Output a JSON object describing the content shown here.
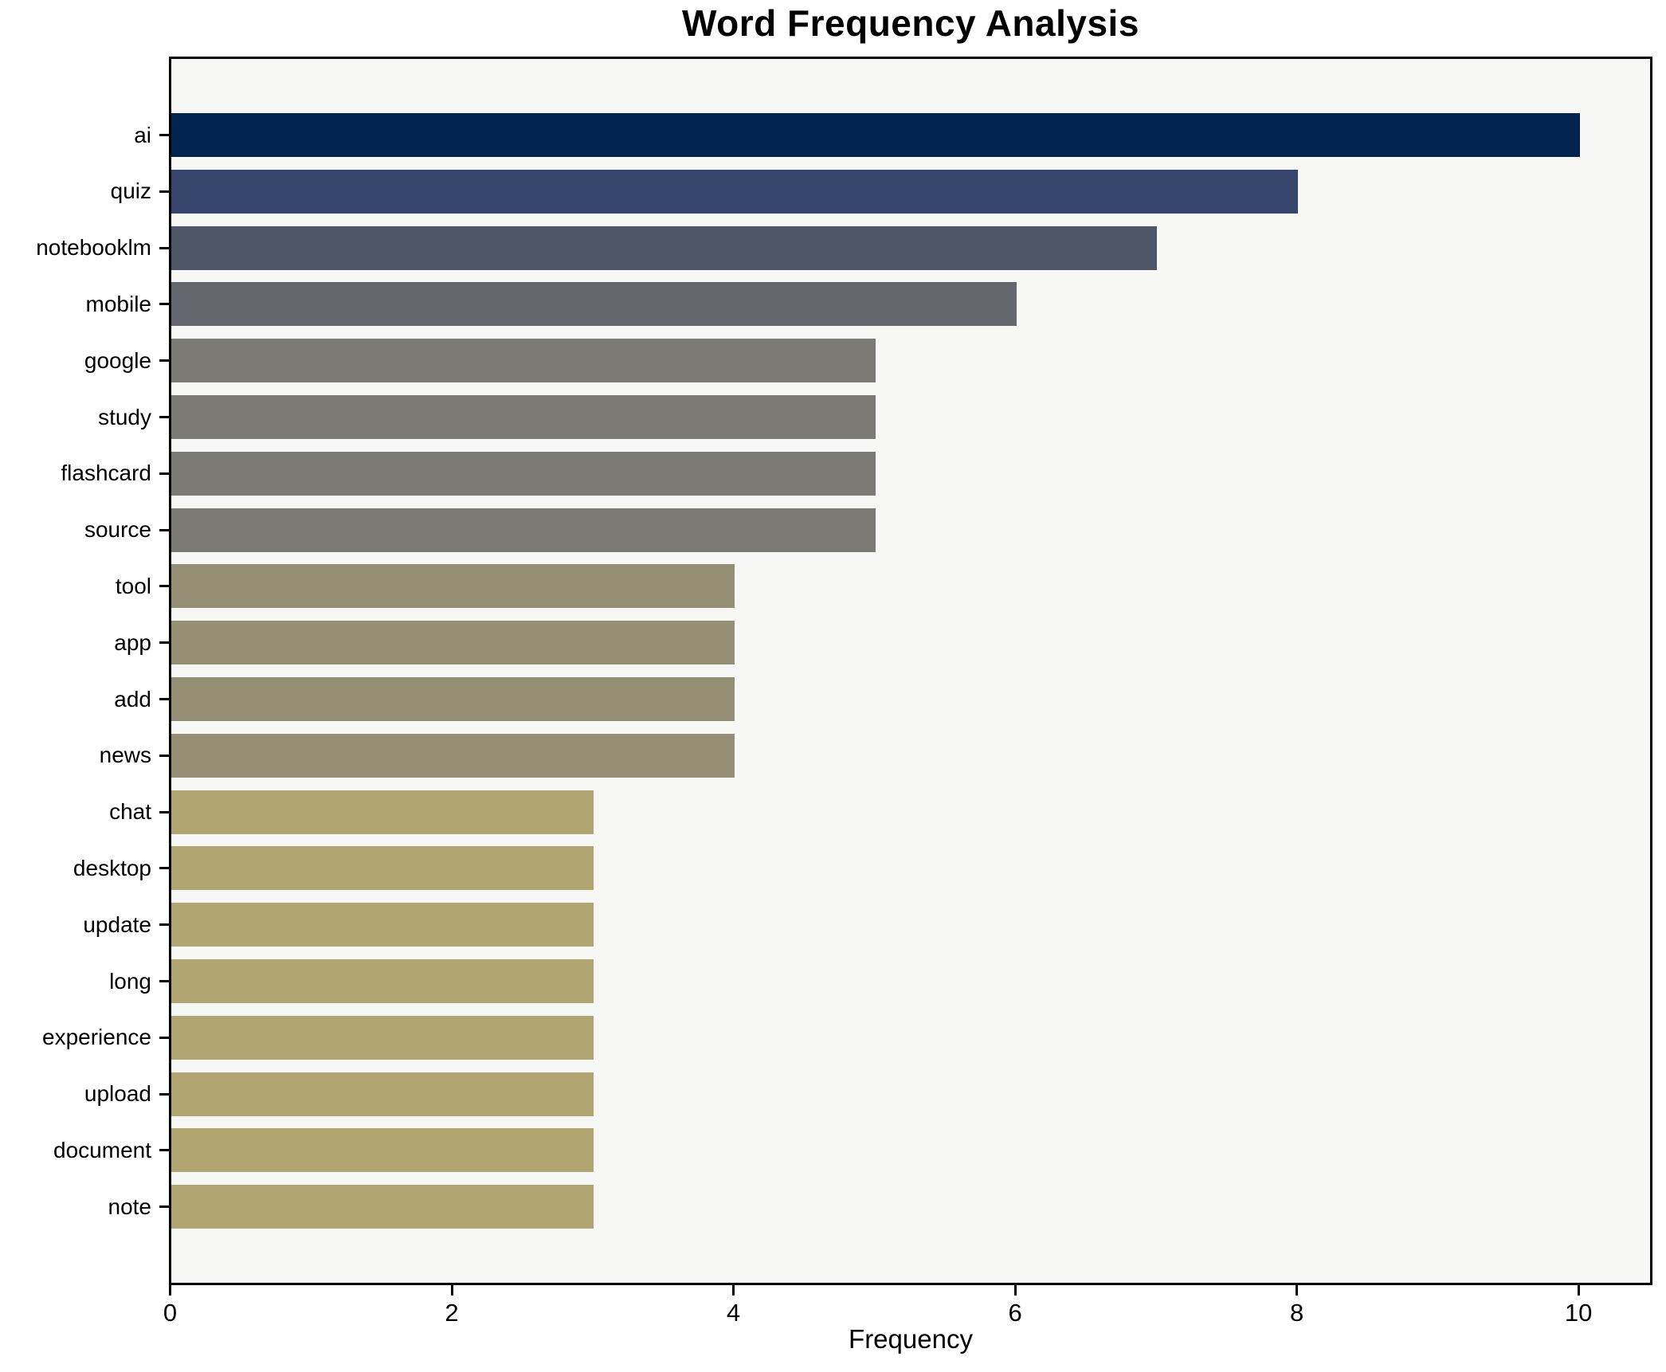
{
  "title": "Word Frequency Analysis",
  "chart_data": {
    "type": "bar",
    "orientation": "horizontal",
    "title": "Word Frequency Analysis",
    "xlabel": "Frequency",
    "ylabel": "",
    "categories": [
      "ai",
      "quiz",
      "notebooklm",
      "mobile",
      "google",
      "study",
      "flashcard",
      "source",
      "tool",
      "app",
      "add",
      "news",
      "chat",
      "desktop",
      "update",
      "long",
      "experience",
      "upload",
      "document",
      "note"
    ],
    "values": [
      10,
      8,
      7,
      6,
      5,
      5,
      5,
      5,
      4,
      4,
      4,
      4,
      3,
      3,
      3,
      3,
      3,
      3,
      3,
      3
    ],
    "bar_colors": [
      "#02234d",
      "#36456b",
      "#4e5668",
      "#64666d",
      "#7b7a74",
      "#7b7a74",
      "#7b7a74",
      "#7b7a74",
      "#948e74",
      "#948e74",
      "#948e74",
      "#948e74",
      "#b0a471",
      "#b0a471",
      "#b0a471",
      "#b0a471",
      "#b0a471",
      "#b0a471",
      "#b0a471",
      "#b0a471"
    ],
    "xlim": [
      0,
      10.5
    ],
    "xticks": [
      0,
      2,
      4,
      6,
      8,
      10
    ],
    "grid": false,
    "legend": false,
    "plot_background": "#f7f7f5",
    "figure_background": "#ffffff",
    "axis_color": "#000000"
  }
}
